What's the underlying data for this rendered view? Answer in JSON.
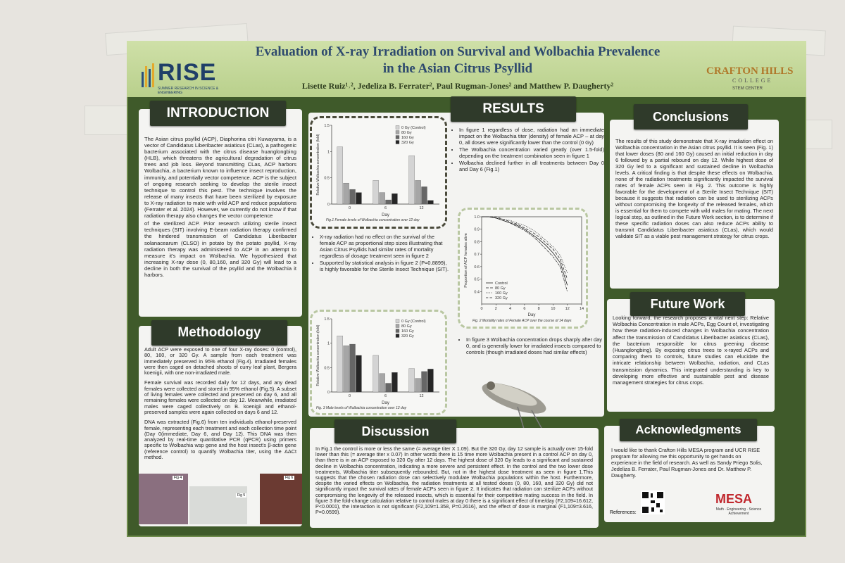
{
  "header": {
    "title_line1": "Evaluation of X-ray Irradiation on Survival and Wolbachia Prevalence",
    "title_line2": "in the Asian Citrus Psyllid",
    "authors": "Lisette Ruiz¹˒², Jedeliza B. Ferrater², Paul Rugman-Jones² and Matthew P. Daugherty²",
    "rise_logo": "RISE",
    "rise_tagline": "SUMMER RESEARCH IN SCIENCE & ENGINEERING",
    "crafton_logo": "CRAFTON HILLS",
    "crafton_sub": "COLLEGE",
    "crafton_center": "STEM CENTER"
  },
  "introduction": {
    "heading": "INTRODUCTION",
    "paragraphs": [
      "The Asian citrus psyllid (ACP), Diaphorina citri Kuwayama, is a vector of Candidatus Liberibacter asiaticus (CLas), a pathogenic bacterium associated with the citrus disease huanglongbing (HLB), which threatens the agricultural degradation of citrus trees and job loss. Beyond transmitting CLas, ACP harbors Wolbachia, a bacterium known to influence insect reproduction, immunity, and potentially vector competence. ACP is the subject of ongoing research seeking to develop the sterile insect technique to control this pest. The technique involves the release of many insects that have been sterilized by exposure to X-ray radiation to mate with wild ACP and reduce populations (Ferrater et al. 2024). However, we currently do not know if that radiation therapy also changes the vector competence",
      "of the sterilized ACP. Prior research utilizing sterile insect techniques (SIT) involving E-beam radiation therapy confirmed the hindered transmission of Candidatus Liberibacter solanacearum (CLSO) in potato by the potato psyllid, X-ray radiation therapy was administered to ACP in an attempt to measure it's impact on Wolbachia. We hypothesized that increasing X-ray dose (0, 80,160, and 320 Gy) will lead to a decline in both the survival of the psyllid and the Wolbachia it harbors."
    ]
  },
  "methodology": {
    "heading": "Methodology",
    "paragraphs": [
      "Adult ACP were exposed to one of four X-ray doses: 0 (control), 80, 160, or 320 Gy. A sample from each treatment was immediately preserved in 95% ethanol (Fig.4). Irradiated females were then caged on detached shoots of curry leaf plant, Bergera koenigii, with one non-irradiated male.",
      "Female survival was recorded daily for 12 days, and any dead females were collected and stored in 95% ethanol (Fig.5). A subset of living females were collected and preserved on day 6, and all remaining females were collected on day 12. Meanwhile, irradiated males were caged collectively on B. koenigii and ethanol-preserved samples were again collected on days 6 and 12.",
      "DNA was extracted (Fig.6) from ten individuals ethanol-preserved female, representing each treatment and each collection time point (Day 0(immediate, Day 6, and Day 12). This DNA was then analyzed by real-time quantitative PCR (qPCR) using primers specific to Wolbachia wsp gene and the host insect's β-actin gene (reference control) to quantify Wolbachia titer, using the ΔΔCt method."
    ],
    "photo_labels": [
      "Fig 4",
      "Fig 5",
      "Fig 6"
    ]
  },
  "results": {
    "heading": "RESULTS",
    "bullets_fig1": [
      "In figure 1 regardless of dose, radiation had an immediate impact on the Wolbachia titer (density) of female ACP – at day 0, all doses were significantly lower than the control (0 Gy)",
      "The Wolbachia concentration varied greatly (over 1.5-fold) depending on the treatment combination seen in figure 1",
      "Wolbachia declined further in all treatments between Day 0 and Day 6 (Fig.1)"
    ],
    "bullets_fig2": [
      "X-ray radiation had no effect on the survival of the female ACP as proportional step sizes illustrating that Asian Citrus Psyllids had similar rates of mortality regardless of dosage treatment seen in figure 2",
      "Supported by statistical analysis in figure 2 (P=0.8899), is highly favorable for the Sterile Insect Technique (SIT)."
    ],
    "bullets_fig3": [
      "In figure 3 Wolbachia concentration drops sharply after day 0, and is generally lower for irradiated insects compared to controls (though irradiated doses had similar effects)"
    ],
    "figure1": {
      "type": "bar",
      "caption": "Fig.1 Female levels of Wolbachia concentration over 12 day",
      "x_label": "Day",
      "y_label": "Relative Wolbachia concentration (fold)",
      "categories": [
        "0",
        "6",
        "12"
      ],
      "series": [
        {
          "name": "0 Gy (Control)",
          "color": "#d4d4d4",
          "values": [
            1.09,
            0.45,
            0.92
          ]
        },
        {
          "name": "80 Gy",
          "color": "#a6a6a6",
          "values": [
            0.4,
            0.22,
            0.45
          ]
        },
        {
          "name": "160 Gy",
          "color": "#666666",
          "values": [
            0.28,
            0.08,
            0.33
          ]
        },
        {
          "name": "320 Gy",
          "color": "#262626",
          "values": [
            0.22,
            0.2,
            0.07
          ]
        }
      ],
      "ylim": [
        0,
        1.5
      ],
      "yticks": [
        0,
        0.5,
        1,
        1.5
      ]
    },
    "figure2": {
      "type": "line",
      "caption": "Fig. 2 Mortality rates of Female ACP over the course of 14 days",
      "x_label": "Day",
      "y_label": "Proportion of ACP females alive",
      "x": [
        0,
        1,
        2,
        3,
        4,
        5,
        6,
        7,
        8,
        9,
        10,
        11,
        12
      ],
      "series": [
        {
          "name": "Control",
          "color": "#222222",
          "dash": "none",
          "values": [
            1,
            1,
            0.99,
            0.97,
            0.95,
            0.93,
            0.9,
            0.86,
            0.82,
            0.77,
            0.71,
            0.63,
            0.45
          ]
        },
        {
          "name": "80 Gy",
          "color": "#222222",
          "dash": "4 2",
          "values": [
            1,
            1,
            1,
            0.98,
            0.96,
            0.94,
            0.91,
            0.88,
            0.84,
            0.79,
            0.74,
            0.66,
            0.5
          ]
        },
        {
          "name": "160 Gy",
          "color": "#222222",
          "dash": "1 1.5",
          "values": [
            1,
            1,
            0.99,
            0.98,
            0.97,
            0.95,
            0.93,
            0.9,
            0.86,
            0.81,
            0.76,
            0.69,
            0.55
          ]
        },
        {
          "name": "320 Gy",
          "color": "#222222",
          "dash": "3 1 1 1",
          "values": [
            1,
            1,
            0.99,
            0.97,
            0.95,
            0.92,
            0.89,
            0.85,
            0.8,
            0.74,
            0.68,
            0.6,
            0.4
          ]
        }
      ],
      "xlim": [
        0,
        14
      ],
      "xticks": [
        0,
        2,
        4,
        6,
        8,
        10,
        12,
        14
      ],
      "ylim": [
        0.3,
        1
      ],
      "yticks": [
        0.4,
        0.5,
        0.6,
        0.7,
        0.8,
        0.9,
        {
          "value": 1,
          "label": "1.0"
        }
      ]
    },
    "figure3": {
      "type": "bar",
      "caption": "Fig. 3 Male levels of Wolbachia concentration over 12 day",
      "x_label": "Day",
      "y_label": "Relative Wolbachia concentration (fold)",
      "categories": [
        "0",
        "6",
        "12"
      ],
      "series": [
        {
          "name": "0 Gy (Control)",
          "color": "#d4d4d4",
          "values": [
            1.15,
            0.75,
            0.48
          ]
        },
        {
          "name": "80 Gy",
          "color": "#a6a6a6",
          "values": [
            0.95,
            0.38,
            0.28
          ]
        },
        {
          "name": "160 Gy",
          "color": "#666666",
          "values": [
            0.98,
            0.18,
            0.42
          ]
        },
        {
          "name": "320 Gy",
          "color": "#262626",
          "values": [
            0.75,
            0.4,
            0.47
          ]
        }
      ],
      "ylim": [
        0,
        1.5
      ],
      "yticks": [
        0,
        0.5,
        1,
        1.5
      ]
    }
  },
  "discussion": {
    "heading": "Discussion",
    "text": "In Fig.1 the control is more or less the same (= average titer X 1.09). But the 320 Gy, day 12 sample is actually over 15-fold lower than this (= average titer x 0.07) In other words there is 15 time more Wolbachia present in a control ACP on day 0, than there is in an ACP exposed to 320 Gy after 12 days. The highest dose of 320 Gy leads to a significant and sustained decline in Wolbachia concentration, indicating a more severe and persistent effect. In the control and the two lower dose treatments, Wolbachia titer subsequently rebounded. But, not in the highest dose treatment as seen in figure 1.This suggests that the chosen radiation dose can selectively modulate Wolbachia populations within the host. Furthermore, despite the varied effects on Wolbachia, the radiation treatments at all tested doses (0, 80, 160, and 320 Gy) did not significantly impact the survival rates of female ACPs seen in figure 2. It indicates that radiation can sterilize ACPs without compromising the longevity of the released insects, which is essential for their competitive mating success in the field. In figure 3 the fold-change calculation relative to control males at day 0 there is a significant effect of time/day (F2,109=16.612, P<0.0001), the interaction is not significant (F2,109=1.358, P=0.2616), and the effect of dose is marginal (F1,109=3.616, P=0.0599)."
  },
  "conclusions": {
    "heading": "Conclusions",
    "text": "The results of this study demonstrate that X-ray irradiation effect on Wolbachia concentration in the Asian citrus psyllid. It is seen (Fig. 1) that lower doses (80 and 160 Gy) caused an initial reduction in day 6 followed by a partial rebound on day 12. While highest dose of 320 Gy led to a significant and sustained decline in Wolbachia levels. A critical finding is that despite these effects on Wolbachia, none of the radiation treatments significantly impacted the survival rates of female ACPs seen in Fig. 2. This outcome is highly favorable for the development of a Sterile Insect Technique (SIT) because it suggests that radiation can be used to sterilizing ACPs without compromising the longevity of the released females, which is essential for them to compete with wild males for mating. The next logical step, as outlined in the Future Work section, is to determine if these specific radiation doses can also reduce ACPs ability to transmit Candidatus Liberibacter asiaticus (CLas), which would validate SIT as a viable pest management strategy for citrus crops."
  },
  "future_work": {
    "heading": "Future Work",
    "text": "Looking forward, the research proposes a vital next step: Relative Wolbachia Concentration in male ACPs, Egg Count of, investigating how these radiation-induced changes in Wolbachia concentration affect the transmission of Candidatus Liberibacter asiaticus (CLas), the bacterium responsible for citrus greening disease (Huanglongbing). By exposing citrus trees to x-rayed ACPs and comparing them to controls, future studies can elucidate the intricate relationship between Wolbachia, radiation, and CLas transmission dynamics. This integrated understanding is key to developing more effective and sustainable pest and disease management strategies for citrus crops."
  },
  "acknowledgments": {
    "heading": "Acknowledgments",
    "text": "I would like to thank Crafton Hills MESA program and UCR RISE program for allowing me this opportunity to get hands on experience in the field of research. As well as Sandy Priego Solis, Jedeliza B. Ferrater, Paul Rugman-Jones and Dr. Matthew P. Daugherty.",
    "references_label": "References:",
    "mesa_name": "MESA",
    "mesa_tagline": "Math · Engineering · Science Achievement"
  }
}
